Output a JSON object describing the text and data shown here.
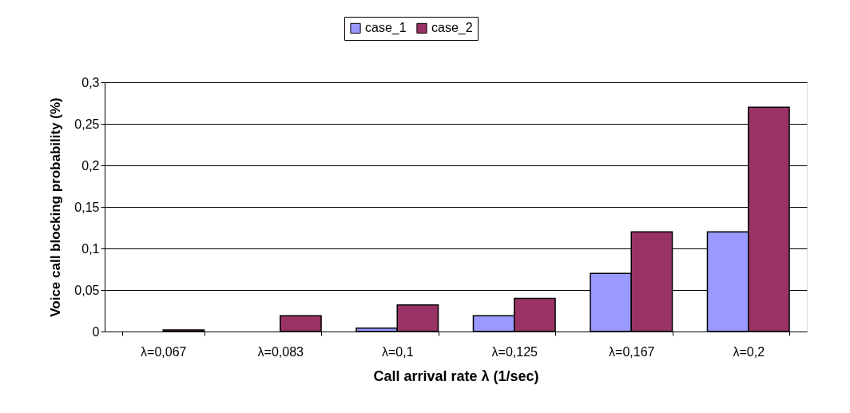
{
  "chart_data": {
    "type": "bar",
    "xlabel": "Call arrival rate λ (1/sec)",
    "ylabel": "Voice call blocking probability (%)",
    "categories": [
      "λ=0,067",
      "λ=0,083",
      "λ=0,1",
      "λ=0,125",
      "λ=0,167",
      "λ=0,2"
    ],
    "series": [
      {
        "name": "case_1",
        "color": "#9999ff",
        "values": [
          null,
          null,
          0.004,
          0.019,
          0.07,
          0.12
        ]
      },
      {
        "name": "case_2",
        "color": "#993366",
        "values": [
          0.002,
          0.019,
          0.032,
          0.04,
          0.12,
          0.27
        ]
      }
    ],
    "ylim": [
      0,
      0.3
    ],
    "yticks": [
      0,
      {
        "value": 0.05,
        "label": "0,05"
      },
      {
        "value": 0.1,
        "label": "0,1"
      },
      {
        "value": 0.15,
        "label": "0,15"
      },
      {
        "value": 0.2,
        "label": "0,2"
      },
      {
        "value": 0.25,
        "label": "0,25"
      },
      {
        "value": 0.3,
        "label": "0,3"
      }
    ],
    "grid": "y",
    "legend": "top"
  }
}
